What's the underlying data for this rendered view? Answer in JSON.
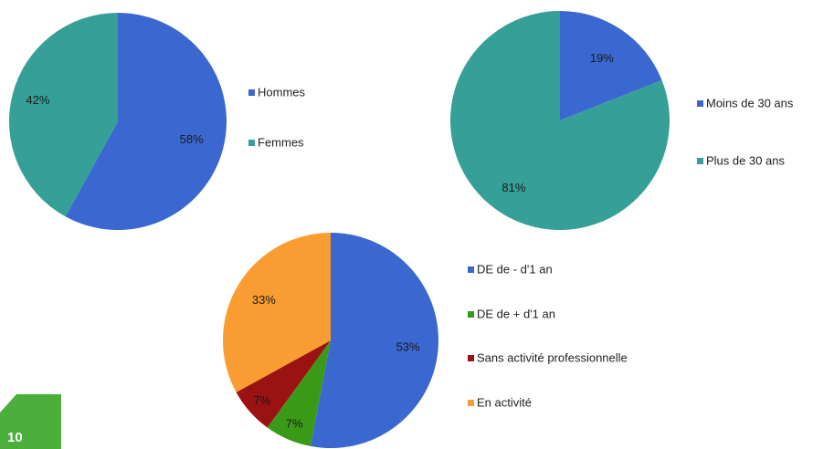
{
  "chart_data": [
    {
      "type": "pie",
      "categories": [
        "Hommes",
        "Femmes"
      ],
      "values": [
        58,
        42
      ],
      "value_labels": [
        "58%",
        "42%"
      ],
      "colors": [
        "#3b67d0",
        "#36a098"
      ]
    },
    {
      "type": "pie",
      "categories": [
        "Moins de 30 ans",
        "Plus de 30 ans"
      ],
      "values": [
        19,
        81
      ],
      "value_labels": [
        "19%",
        "81%"
      ],
      "colors": [
        "#3b67d0",
        "#36a098"
      ]
    },
    {
      "type": "pie",
      "categories": [
        "DE de - d'1 an",
        "DE de + d'1 an",
        "Sans activité professionnelle",
        "En activité"
      ],
      "values": [
        53,
        7,
        7,
        33
      ],
      "value_labels": [
        "53%",
        "7%",
        "7%",
        "33%"
      ],
      "colors": [
        "#3b67d0",
        "#3a9a18",
        "#9a1212",
        "#f99d32"
      ]
    }
  ],
  "page_number": "10"
}
